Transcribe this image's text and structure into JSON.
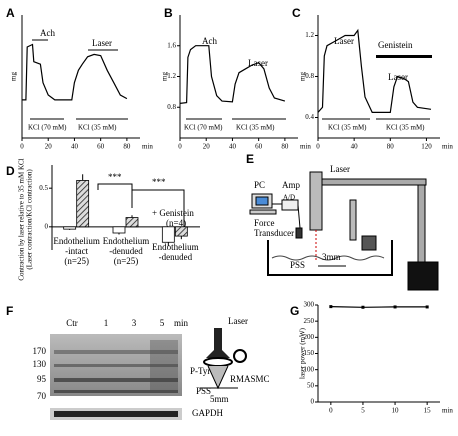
{
  "chart_data": [
    {
      "type": "line",
      "label": "A",
      "ylabel": "mg",
      "xlabel": "min",
      "annotations": [
        "Ach",
        "Laser",
        "KCl (70 mM)",
        "KCl (35 mM)"
      ],
      "x": [
        0,
        3,
        4,
        8,
        9,
        14,
        16,
        20,
        25,
        38,
        40,
        43,
        46,
        50,
        55,
        60,
        65,
        70,
        75,
        80
      ],
      "values": [
        0.31,
        0.31,
        0.74,
        0.76,
        0.62,
        0.6,
        0.45,
        0.35,
        0.31,
        0.31,
        0.45,
        0.55,
        0.6,
        0.66,
        0.68,
        0.67,
        0.55,
        0.45,
        0.35,
        0.32
      ],
      "color": "#000000",
      "xlim": [
        0,
        90
      ],
      "ylim": [
        0,
        1
      ],
      "xticks": [
        0,
        20,
        40,
        60,
        80
      ]
    },
    {
      "type": "line",
      "label": "B",
      "ylabel": "mg",
      "xlabel": "min",
      "annotations": [
        "Ach",
        "Laser",
        "KCl (70 mM)",
        "KCl (35 mM)"
      ],
      "x": [
        0,
        5,
        6,
        8,
        12,
        22,
        24,
        28,
        32,
        40,
        42,
        45,
        50,
        55,
        60,
        64,
        68,
        72,
        80
      ],
      "values": [
        0.85,
        0.86,
        1.45,
        1.55,
        1.6,
        1.6,
        1.2,
        0.95,
        0.88,
        0.87,
        1.1,
        1.25,
        1.3,
        1.35,
        1.38,
        1.3,
        1.05,
        0.92,
        0.88
      ],
      "color": "#000000",
      "xlim": [
        0,
        90
      ],
      "ylim": [
        0.4,
        2.0
      ],
      "xticks": [
        0,
        20,
        40,
        60,
        80
      ],
      "yticks": [
        0.8,
        1.2,
        1.6
      ]
    },
    {
      "type": "line",
      "label": "C",
      "ylabel": "mg",
      "xlabel": "min",
      "annotations": [
        "Laser",
        "Genistein",
        "Laser",
        "KCl (35 mM)",
        "KCl (35 mM)"
      ],
      "x": [
        0,
        5,
        7,
        10,
        20,
        30,
        40,
        44,
        48,
        52,
        60,
        80,
        84,
        88,
        95,
        100,
        105,
        110,
        125
      ],
      "values": [
        0.45,
        0.5,
        1.0,
        1.1,
        1.15,
        1.2,
        1.2,
        1.25,
        0.9,
        0.6,
        0.45,
        0.45,
        0.7,
        0.8,
        0.78,
        0.75,
        0.55,
        0.5,
        0.48
      ],
      "color": "#000000",
      "xlim": [
        0,
        135
      ],
      "ylim": [
        0.2,
        1.4
      ],
      "xticks": [
        0,
        40,
        80,
        120
      ],
      "yticks": [
        0.4,
        0.8,
        1.2
      ]
    },
    {
      "type": "bar",
      "label": "D",
      "ylabel": [
        "Contraction by laser relative to 35 mM KCl",
        "(Laser contraction/KCl contraction)"
      ],
      "categories": [
        [
          "Endothelium",
          "-intact",
          "(n=25)"
        ],
        [
          "Endothelium",
          "-denuded",
          "(n=25)"
        ],
        [
          "Endothelium",
          "-denuded"
        ]
      ],
      "annotations": [
        "***",
        "***",
        "+ Genistein",
        "(n=4)"
      ],
      "series": [
        {
          "color": "#ffffff",
          "values": [
            -0.03,
            -0.08,
            -0.2
          ],
          "errors": [
            0.01,
            0.02,
            0.05
          ]
        },
        {
          "color": "#555555",
          "values": [
            0.6,
            0.12,
            -0.12
          ],
          "errors": [
            0.08,
            0.03,
            0.04
          ]
        }
      ],
      "ylim": [
        -0.3,
        0.8
      ],
      "yticks": [
        0,
        0.5
      ]
    },
    {
      "type": "line",
      "label": "G",
      "ylabel": "laser power (mW)",
      "xlabel": "min",
      "x": [
        0,
        5,
        10,
        15
      ],
      "values": [
        295,
        293,
        294,
        294
      ],
      "color": "#000000",
      "markers": true,
      "xlim": [
        -2,
        17
      ],
      "ylim": [
        0,
        300
      ],
      "xticks": [
        0,
        5,
        10,
        15
      ],
      "yticks": [
        0,
        50,
        100,
        150,
        200,
        250,
        300
      ]
    }
  ],
  "diagram": {
    "label": "E",
    "laser": "Laser",
    "pc": "PC",
    "amp": "Amp",
    "ad": "A/D",
    "transducer": [
      "Force",
      "Transducer"
    ],
    "pss": "PSS",
    "distance": "3mm"
  },
  "blot": {
    "label": "F",
    "lanes": [
      "Ctr",
      1,
      3,
      5
    ],
    "unit": "min",
    "markers": [
      170,
      130,
      95,
      70
    ],
    "antibody": "P-Tyr",
    "control": "GAPDH",
    "laser": "Laser",
    "cells": "RMASMC",
    "pss": "PSS",
    "distance": "5mm"
  }
}
